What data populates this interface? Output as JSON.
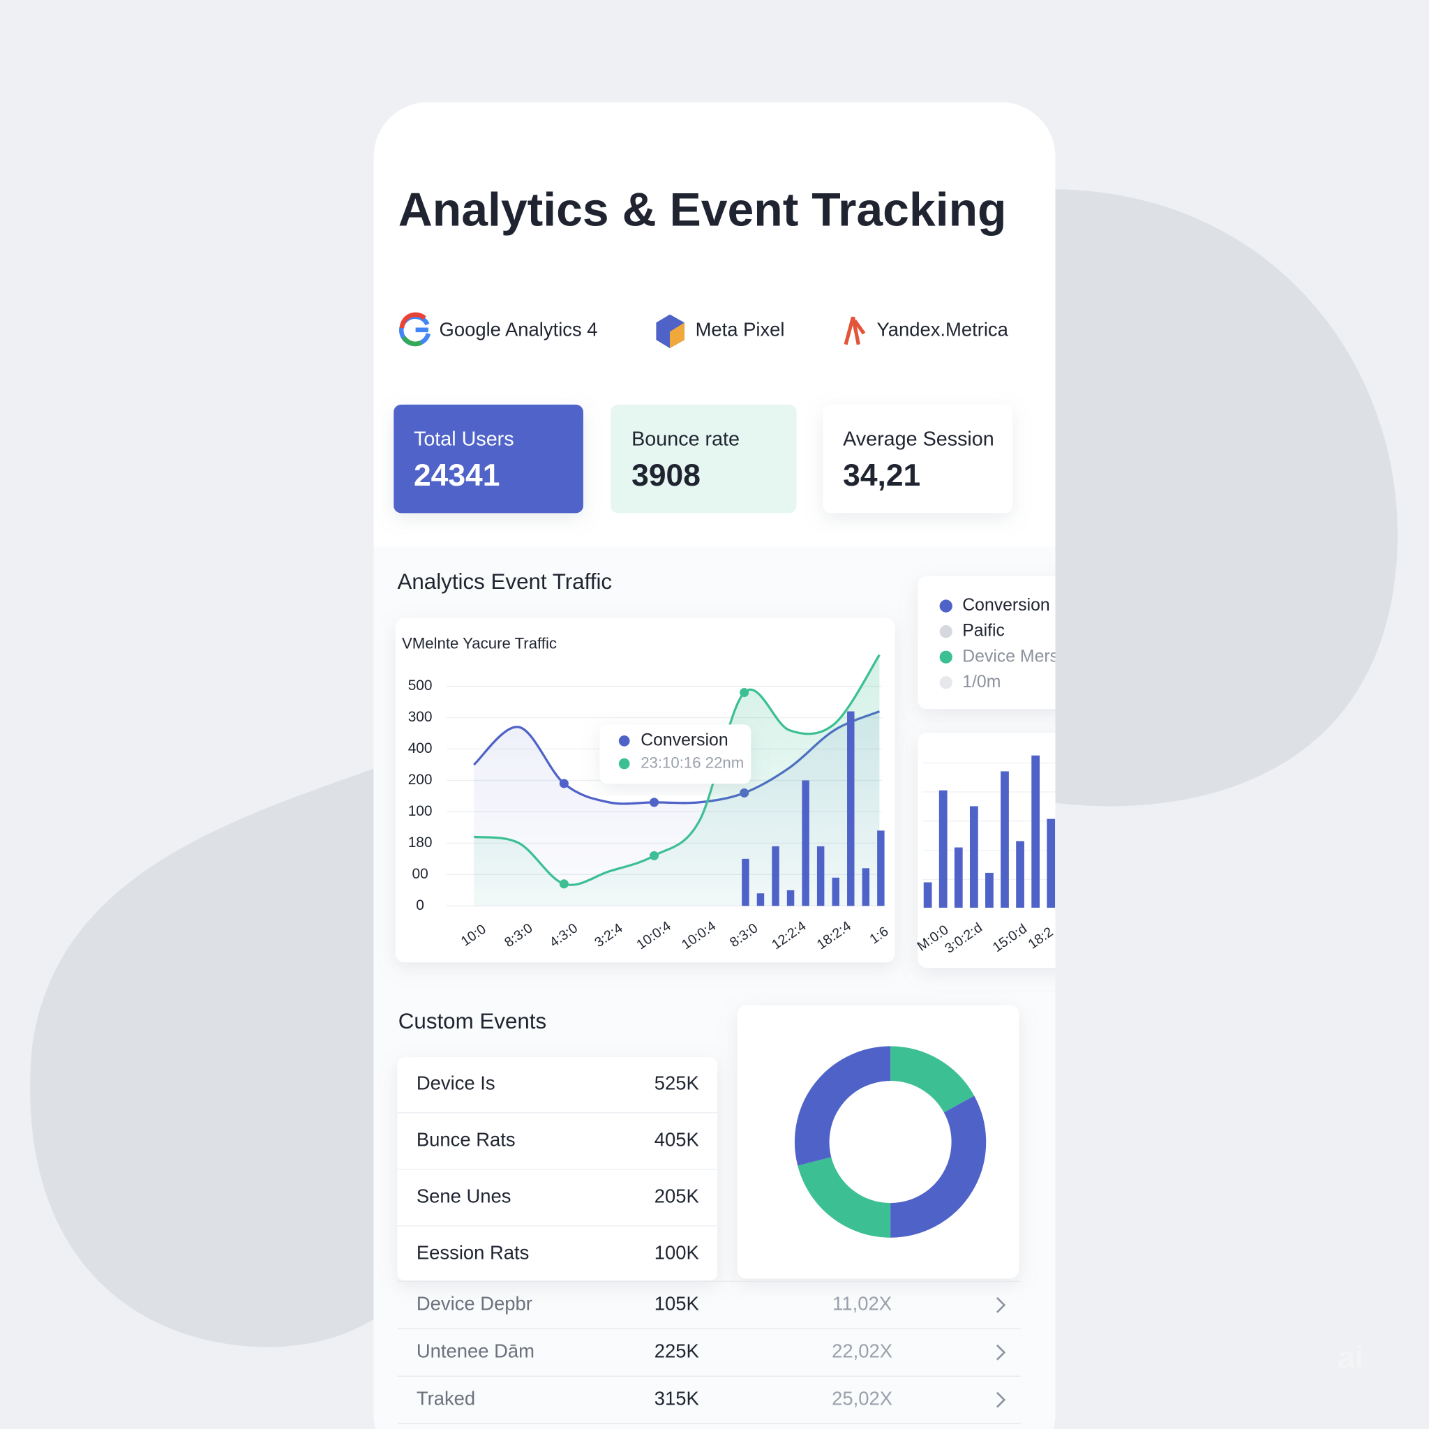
{
  "title": "Analytics & Event Tracking",
  "integrations": [
    "Google Analytics 4",
    "Meta Pixel",
    "Yandex.Metrica"
  ],
  "stats": [
    {
      "label": "Total Users",
      "value": "24341"
    },
    {
      "label": "Bounce rate",
      "value": "3908"
    },
    {
      "label": "Average Session",
      "value": "34,21"
    }
  ],
  "traffic_title": "Analytics Event Traffic",
  "custom_events": {
    "title": "Custom Events",
    "rows": [
      [
        "Device Is",
        "525K"
      ],
      [
        "Bunce Rats",
        "405K"
      ],
      [
        "Sene Unes",
        "205K"
      ],
      [
        "Eession Rats",
        "100K"
      ]
    ]
  },
  "event_list": [
    [
      "Device Depbr",
      "105K",
      "11,02X"
    ],
    [
      "Untenee Dām",
      "225K",
      "22,02X"
    ],
    [
      "Traked",
      "315K",
      "25,02X"
    ]
  ],
  "watermark": "ai",
  "chart_data": [
    {
      "type": "line",
      "title": "VMelnte Yacure Traffic",
      "categories": [
        "10:0",
        "8:3:0",
        "4:3:0",
        "3:2:4",
        "10:0:4",
        "10:0:4",
        "8:3:0",
        "12:2:4",
        "18:2:4",
        "1:6"
      ],
      "ylim": [
        0,
        8
      ],
      "yticks": [
        0,
        {
          "value": 1,
          "label": "00"
        },
        {
          "value": 2,
          "label": "180"
        },
        {
          "value": 3,
          "label": "100"
        },
        {
          "value": 4,
          "label": "200"
        },
        {
          "value": 5,
          "label": "400"
        },
        {
          "value": 6,
          "label": "300"
        },
        {
          "value": 7,
          "label": "500"
        }
      ],
      "grid": true,
      "series": [
        {
          "type": "line",
          "color": "#4f62c8",
          "values": [
            4.5,
            5.7,
            3.9,
            3.3,
            3.3,
            3.3,
            3.6,
            4.4,
            5.6,
            6.2
          ]
        },
        {
          "type": "line",
          "color": "#3dbf94",
          "values": [
            2.2,
            2.0,
            0.7,
            1.1,
            1.6,
            2.7,
            6.8,
            5.6,
            5.8,
            8.0
          ]
        },
        {
          "type": "bar",
          "color": "#4f62c8",
          "values": [
            1.5,
            0.4,
            1.9,
            0.5,
            4.0,
            1.9,
            0.9,
            6.2,
            1.2,
            2.4
          ]
        }
      ],
      "legend": [
        {
          "name": "Conversion",
          "color": "#4f62c8"
        },
        {
          "name": "Paific",
          "color": "#d5d9df"
        },
        {
          "name": "Device Mers",
          "color": "#3dbf94"
        },
        {
          "name": "1/0m",
          "color": "#e6e8ec"
        }
      ],
      "tooltip": {
        "title": "Conversion",
        "text": "23:10:16 22nm"
      }
    },
    {
      "type": "bar",
      "categories": [
        "M:0:0",
        null,
        "3:0:2:d",
        null,
        null,
        "15:0:d",
        null,
        "18:2",
        null
      ],
      "ylim": [
        0,
        5
      ],
      "color": "#4f62c8",
      "values": [
        0.8,
        3.7,
        1.9,
        3.2,
        1.1,
        4.3,
        2.1,
        4.8,
        2.8
      ]
    },
    {
      "type": "donut",
      "values": [
        17,
        33,
        21,
        29
      ],
      "colors": [
        "#3dbf94",
        "#4f62c8",
        "#3dbf94",
        "#4f62c8"
      ]
    }
  ]
}
